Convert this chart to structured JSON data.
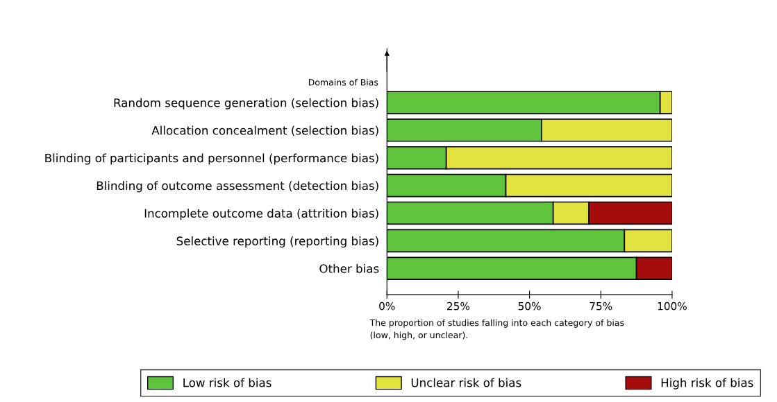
{
  "chart_data": {
    "type": "bar",
    "orientation": "horizontal",
    "stacked": true,
    "ylabel": "Domains of Bias",
    "xlabel": "The proportion of studies falling into each category of bias\n(low, high, or unclear).",
    "categories": [
      "Random sequence generation (selection bias)",
      "Allocation concealment (selection bias)",
      "Blinding of participants and personnel (performance bias)",
      "Blinding of outcome assessment (detection bias)",
      "Incomplete outcome data (attrition bias)",
      "Selective reporting (reporting bias)",
      "Other bias"
    ],
    "series": [
      {
        "name": "Low risk of bias",
        "color": "#5fc43c",
        "values": [
          95.8,
          54.2,
          20.8,
          41.7,
          58.3,
          83.3,
          87.5
        ]
      },
      {
        "name": "Unclear risk of bias",
        "color": "#e3e33f",
        "values": [
          4.2,
          45.8,
          79.2,
          58.3,
          12.5,
          16.7,
          null
        ]
      },
      {
        "name": "High risk of bias",
        "color": "#a50d0d",
        "values": [
          null,
          null,
          null,
          null,
          29.2,
          null,
          12.5
        ]
      }
    ],
    "xlim": [
      0,
      100
    ],
    "xticks": [
      {
        "value": 0,
        "label": "0%"
      },
      {
        "value": 25,
        "label": "25%"
      },
      {
        "value": 50,
        "label": "50%"
      },
      {
        "value": 75,
        "label": "75%"
      },
      {
        "value": 100,
        "label": "100%"
      }
    ],
    "legend": "bottom",
    "grid": false
  }
}
